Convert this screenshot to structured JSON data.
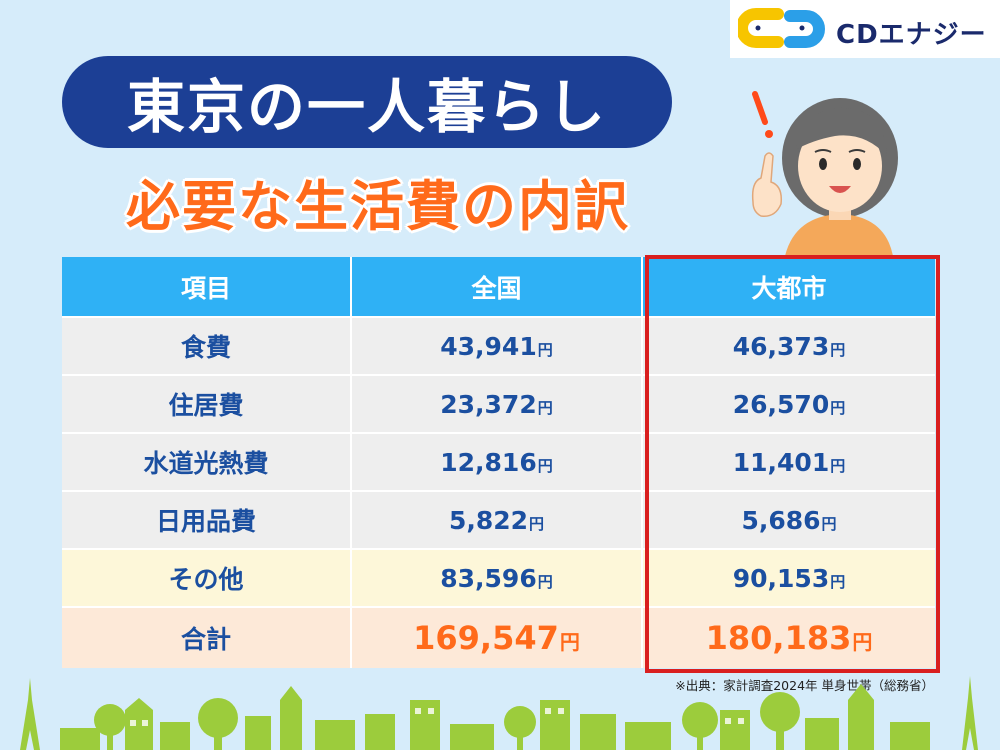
{
  "logo": {
    "text": "CDエナジー"
  },
  "title": "東京の一人暮らし",
  "subtitle": "必要な生活費の内訳",
  "table": {
    "headers": [
      "項目",
      "全国",
      "大都市"
    ],
    "unit": "円",
    "rows": [
      {
        "item": "食費",
        "national": "43,941",
        "city": "46,373"
      },
      {
        "item": "住居費",
        "national": "23,372",
        "city": "26,570"
      },
      {
        "item": "水道光熱費",
        "national": "12,816",
        "city": "11,401"
      },
      {
        "item": "日用品費",
        "national": "5,822",
        "city": "5,686"
      },
      {
        "item": "その他",
        "national": "83,596",
        "city": "90,153"
      },
      {
        "item": "合計",
        "national": "169,547",
        "city": "180,183"
      }
    ]
  },
  "source": "※出典：家計調査2024年 単身世帯（総務省）",
  "colors": {
    "title_bg": "#1c3f95",
    "subtitle": "#ff6a1a",
    "header_bg": "#2fb1f5",
    "value_text": "#1b4fa0",
    "highlight_border": "#d91f1f",
    "other_row_bg": "#fdf7d9",
    "total_row_bg": "#fde9d8"
  },
  "icons": {
    "logo_mark": "cd-logo-icon",
    "character": "woman-pointing-icon",
    "exclamation": "exclamation-icon",
    "background": "townscape-icon"
  }
}
